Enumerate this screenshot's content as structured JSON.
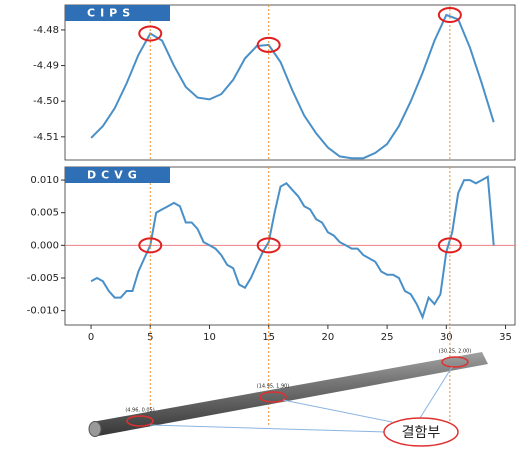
{
  "chart_data": [
    {
      "type": "line",
      "title": "CIPS",
      "x": [
        0,
        1,
        2,
        3,
        4,
        5,
        6,
        7,
        8,
        9,
        10,
        11,
        12,
        13,
        14,
        15,
        16,
        17,
        18,
        19,
        20,
        21,
        22,
        23,
        24,
        25,
        26,
        27,
        28,
        29,
        30,
        31,
        32,
        33,
        34
      ],
      "series": [
        {
          "color": "#4a90c8",
          "values": [
            -4.5103,
            -4.507,
            -4.502,
            -4.495,
            -4.487,
            -4.481,
            -4.483,
            -4.49,
            -4.496,
            -4.499,
            -4.4995,
            -4.498,
            -4.494,
            -4.488,
            -4.4845,
            -4.4842,
            -4.489,
            -4.497,
            -4.504,
            -4.509,
            -4.513,
            -4.5155,
            -4.516,
            -4.516,
            -4.5145,
            -4.512,
            -4.507,
            -4.5,
            -4.492,
            -4.483,
            -4.4758,
            -4.477,
            -4.485,
            -4.495,
            -4.5059
          ]
        }
      ],
      "xlim": [
        -2.2,
        35.8
      ],
      "ylim": [
        -4.5165,
        -4.473
      ],
      "yticks": [
        -4.48,
        -4.49,
        {
          "value": -4.5,
          "label": "-4.50"
        },
        -4.51
      ],
      "highlight_x": [
        5,
        15,
        30.3
      ]
    },
    {
      "type": "line",
      "title": "DCVG",
      "x": [
        0,
        0.5,
        1,
        1.5,
        2,
        2.5,
        3,
        3.5,
        4,
        4.5,
        5,
        5.5,
        6,
        6.5,
        7,
        7.5,
        8,
        8.5,
        9,
        9.5,
        10,
        10.5,
        11,
        11.5,
        12,
        12.5,
        13,
        13.5,
        14,
        14.5,
        15,
        15.5,
        16,
        16.5,
        17,
        17.5,
        18,
        18.5,
        19,
        19.5,
        20,
        20.5,
        21,
        21.5,
        22,
        22.5,
        23,
        23.5,
        24,
        24.5,
        25,
        25.5,
        26,
        26.5,
        27,
        27.5,
        28,
        28.5,
        29,
        29.5,
        30,
        30.5,
        31,
        31.5,
        32,
        32.5,
        33,
        33.5,
        34
      ],
      "series": [
        {
          "color": "#4a90c8",
          "values": [
            -0.0055,
            -0.005,
            -0.0055,
            -0.007,
            -0.008,
            -0.008,
            -0.007,
            -0.007,
            -0.004,
            -0.002,
            0.0,
            0.005,
            0.0055,
            0.006,
            0.0065,
            0.006,
            0.0035,
            0.0035,
            0.0025,
            0.0005,
            0.0,
            -0.0005,
            -0.0015,
            -0.003,
            -0.0035,
            -0.006,
            -0.0065,
            -0.005,
            -0.003,
            -0.001,
            0.0005,
            0.005,
            0.009,
            0.0095,
            0.0085,
            0.0075,
            0.006,
            0.0055,
            0.004,
            0.0035,
            0.002,
            0.0015,
            0.0005,
            0.0,
            -0.0005,
            -0.0005,
            -0.0015,
            -0.002,
            -0.0025,
            -0.004,
            -0.0045,
            -0.0045,
            -0.005,
            -0.007,
            -0.0075,
            -0.009,
            -0.011,
            -0.008,
            -0.009,
            -0.0075,
            -0.001,
            0.002,
            0.008,
            0.01,
            0.01,
            0.0095,
            0.01,
            0.0105,
            0.0
          ]
        }
      ],
      "xlim": [
        -2.2,
        35.8
      ],
      "xticks": [
        0,
        5,
        10,
        15,
        20,
        25,
        30,
        35
      ],
      "ylim": [
        -0.0122,
        0.012
      ],
      "yticks": [
        {
          "value": 0.01,
          "label": "0.010"
        },
        0.005,
        {
          "value": 0,
          "label": "0.000"
        },
        -0.005,
        {
          "value": -0.01,
          "label": "-0.010"
        }
      ],
      "reference_line": 0,
      "reference_color": "#f08080",
      "highlight_x": [
        5,
        15,
        30.3
      ]
    }
  ],
  "diagram": {
    "points": [
      "(4.96, 0.05)",
      "(14.95, 1.90)",
      "(30.25, 2.00)"
    ],
    "defect_label": "결함부"
  }
}
